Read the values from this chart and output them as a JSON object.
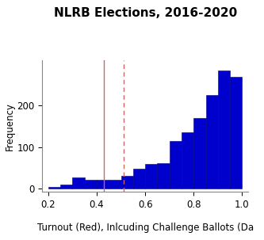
{
  "title": "NLRB Elections, 2016-2020",
  "xlabel": "Turnout (Red), Inlcuding Challenge Ballots (Da",
  "ylabel": "Frequency",
  "bar_color": "#0000CC",
  "bar_edgecolor": "#00008B",
  "xlim": [
    0.175,
    1.025
  ],
  "ylim": [
    -8,
    310
  ],
  "xticks": [
    0.2,
    0.4,
    0.6,
    0.8,
    1.0
  ],
  "yticks": [
    0,
    100,
    200
  ],
  "bin_edges": [
    0.2,
    0.25,
    0.3,
    0.35,
    0.4,
    0.45,
    0.5,
    0.55,
    0.6,
    0.65,
    0.7,
    0.75,
    0.8,
    0.85,
    0.9,
    0.95,
    1.0
  ],
  "bin_heights": [
    5,
    10,
    28,
    22,
    22,
    22,
    30,
    48,
    60,
    62,
    115,
    135,
    170,
    225,
    285,
    270
  ],
  "vline_solid": 0.43,
  "vline_dashed": 0.51,
  "vline_color": "#CC6666",
  "title_fontsize": 11,
  "axis_fontsize": 8.5,
  "tick_fontsize": 8.5,
  "background_color": "#ffffff"
}
